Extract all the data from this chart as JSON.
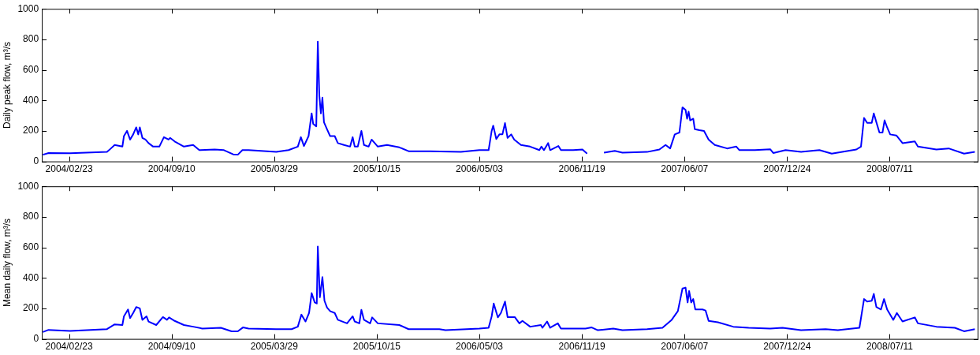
{
  "chart_data": [
    {
      "type": "line",
      "ylabel": "Daily peak flow, m³/s",
      "xlim": [
        "2004-01-01",
        "2008-12-31"
      ],
      "ylim": [
        0,
        1000
      ],
      "yticks": [
        0,
        200,
        400,
        600,
        800,
        1000
      ],
      "xticks": [
        {
          "value": "2004-02-23",
          "label": "2004/02/23"
        },
        {
          "value": "2004-09-10",
          "label": "2004/09/10"
        },
        {
          "value": "2005-03-29",
          "label": "2005/03/29"
        },
        {
          "value": "2005-10-15",
          "label": "2005/10/15"
        },
        {
          "value": "2006-05-03",
          "label": "2006/05/03"
        },
        {
          "value": "2006-11-19",
          "label": "2006/11/19"
        },
        {
          "value": "2007-06-07",
          "label": "2007/06/07"
        },
        {
          "value": "2007-12-24",
          "label": "2007/12/24"
        },
        {
          "value": "2008-07-11",
          "label": "2008/07/11"
        }
      ],
      "grid": false,
      "legend": false,
      "marker": "none",
      "line_style": "solid",
      "x": [
        "2004-01-03",
        "2004-01-14",
        "2004-02-25",
        "2004-05-07",
        "2004-05-13",
        "2004-05-22",
        "2004-06-06",
        "2004-06-09",
        "2004-06-15",
        "2004-06-21",
        "2004-06-27",
        "2004-07-03",
        "2004-07-07",
        "2004-07-10",
        "2004-07-15",
        "2004-07-21",
        "2004-07-27",
        "2004-08-05",
        "2004-08-17",
        "2004-08-26",
        "2004-09-04",
        "2004-09-07",
        "2004-09-16",
        "2004-10-04",
        "2004-10-22",
        "2004-11-03",
        "2004-12-03",
        "2004-12-21",
        "2005-01-08",
        "2005-01-17",
        "2005-01-26",
        "2005-02-07",
        "2005-04-02",
        "2005-04-26",
        "2005-05-14",
        "2005-05-20",
        "2005-05-26",
        "2005-06-04",
        "2005-06-10",
        "2005-06-13",
        "2005-06-19",
        "2005-06-22",
        "2005-06-25",
        "2005-06-28",
        "2005-07-01",
        "2005-07-04",
        "2005-07-10",
        "2005-07-16",
        "2005-07-25",
        "2005-07-31",
        "2005-08-12",
        "2005-08-24",
        "2005-08-29",
        "2005-09-02",
        "2005-09-08",
        "2005-09-15",
        "2005-09-20",
        "2005-09-29",
        "2005-10-05",
        "2005-10-17",
        "2005-11-04",
        "2005-11-28",
        "2005-12-16",
        "2006-01-27",
        "2006-03-28",
        "2006-05-03",
        "2006-05-21",
        "2006-05-27",
        "2006-05-30",
        "2006-06-05",
        "2006-06-11",
        "2006-06-17",
        "2006-06-22",
        "2006-06-27",
        "2006-07-04",
        "2006-07-10",
        "2006-07-23",
        "2006-08-10",
        "2006-08-28",
        "2006-09-01",
        "2006-09-06",
        "2006-09-14",
        "2006-09-18",
        "2006-10-04",
        "2006-10-09",
        "2006-11-02",
        "2006-11-20",
        "2006-11-29",
        "2006-12-14",
        "2007-01-01",
        "2007-01-22",
        "2007-02-06",
        "2007-03-26",
        "2007-04-19",
        "2007-05-01",
        "2007-05-10",
        "2007-05-19",
        "2007-05-28",
        "2007-06-03",
        "2007-06-09",
        "2007-06-12",
        "2007-06-15",
        "2007-06-18",
        "2007-06-24",
        "2007-06-27",
        "2007-07-06",
        "2007-07-15",
        "2007-07-24",
        "2007-08-05",
        "2007-08-29",
        "2007-09-16",
        "2007-09-22",
        "2007-10-22",
        "2007-11-21",
        "2007-11-27",
        "2007-12-21",
        "2008-01-20",
        "2008-02-25",
        "2008-03-20",
        "2008-05-07",
        "2008-05-16",
        "2008-05-22",
        "2008-05-28",
        "2008-06-06",
        "2008-06-10",
        "2008-06-15",
        "2008-06-21",
        "2008-06-27",
        "2008-07-01",
        "2008-07-06",
        "2008-07-12",
        "2008-07-24",
        "2008-08-05",
        "2008-08-29",
        "2008-09-04",
        "2008-10-10",
        "2008-11-03",
        "2008-12-03",
        "2008-12-24"
      ],
      "series": [
        {
          "color": "#0000ff",
          "values": [
            44,
            55,
            53,
            62,
            80,
            108,
            97,
            166,
            200,
            143,
            177,
            223,
            177,
            223,
            154,
            143,
            120,
            97,
            97,
            159,
            143,
            154,
            131,
            97,
            108,
            74,
            78,
            74,
            46,
            44,
            74,
            74,
            62,
            74,
            97,
            159,
            101,
            166,
            315,
            246,
            230,
            785,
            430,
            315,
            418,
            257,
            211,
            166,
            166,
            120,
            108,
            97,
            159,
            97,
            97,
            200,
            108,
            97,
            143,
            97,
            108,
            92,
            67,
            67,
            62,
            74,
            74,
            200,
            234,
            147,
            177,
            177,
            251,
            154,
            177,
            143,
            108,
            97,
            74,
            97,
            74,
            120,
            74,
            101,
            74,
            74,
            78,
            51,
            null,
            57,
            69,
            57,
            62,
            78,
            108,
            85,
            177,
            189,
            354,
            338,
            280,
            326,
            269,
            280,
            211,
            205,
            200,
            143,
            108,
            85,
            97,
            74,
            74,
            80,
            55,
            74,
            62,
            74,
            51,
            78,
            97,
            285,
            253,
            253,
            315,
            257,
            189,
            189,
            269,
            223,
            177,
            170,
            120,
            131,
            97,
            78,
            85,
            51,
            62
          ]
        }
      ]
    },
    {
      "type": "line",
      "ylabel": "Mean daily flow, m³/s",
      "xlim": [
        "2004-01-01",
        "2008-12-31"
      ],
      "ylim": [
        0,
        1000
      ],
      "yticks": [
        0,
        200,
        400,
        600,
        800,
        1000
      ],
      "xticks": [
        {
          "value": "2004-02-23",
          "label": "2004/02/23"
        },
        {
          "value": "2004-09-10",
          "label": "2004/09/10"
        },
        {
          "value": "2005-03-29",
          "label": "2005/03/29"
        },
        {
          "value": "2005-10-15",
          "label": "2005/10/15"
        },
        {
          "value": "2006-05-03",
          "label": "2006/05/03"
        },
        {
          "value": "2006-11-19",
          "label": "2006/11/19"
        },
        {
          "value": "2007-06-07",
          "label": "2007/06/07"
        },
        {
          "value": "2007-12-24",
          "label": "2007/12/24"
        },
        {
          "value": "2008-07-11",
          "label": "2008/07/11"
        }
      ],
      "grid": false,
      "legend": false,
      "marker": "none",
      "line_style": "solid",
      "x": [
        "2004-01-03",
        "2004-01-14",
        "2004-02-25",
        "2004-05-07",
        "2004-05-22",
        "2004-06-06",
        "2004-06-09",
        "2004-06-17",
        "2004-06-21",
        "2004-06-27",
        "2004-07-03",
        "2004-07-10",
        "2004-07-15",
        "2004-07-23",
        "2004-07-27",
        "2004-08-11",
        "2004-08-24",
        "2004-09-01",
        "2004-09-05",
        "2004-09-16",
        "2004-10-04",
        "2004-10-22",
        "2004-11-09",
        "2004-12-15",
        "2005-01-05",
        "2005-01-17",
        "2005-01-27",
        "2005-02-07",
        "2005-04-02",
        "2005-05-02",
        "2005-05-14",
        "2005-05-21",
        "2005-05-29",
        "2005-06-05",
        "2005-06-10",
        "2005-06-16",
        "2005-06-20",
        "2005-06-22",
        "2005-06-26",
        "2005-07-01",
        "2005-07-05",
        "2005-07-10",
        "2005-07-16",
        "2005-07-25",
        "2005-07-31",
        "2005-08-18",
        "2005-08-29",
        "2005-09-02",
        "2005-09-11",
        "2005-09-15",
        "2005-09-20",
        "2005-10-02",
        "2005-10-06",
        "2005-10-17",
        "2005-11-28",
        "2005-12-16",
        "2006-02-14",
        "2006-02-26",
        "2006-05-03",
        "2006-05-21",
        "2006-05-27",
        "2006-05-31",
        "2006-06-08",
        "2006-06-14",
        "2006-06-22",
        "2006-06-27",
        "2006-07-11",
        "2006-07-20",
        "2006-07-26",
        "2006-08-10",
        "2006-08-31",
        "2006-09-03",
        "2006-09-12",
        "2006-09-18",
        "2006-10-03",
        "2006-10-09",
        "2006-11-26",
        "2006-12-08",
        "2006-12-20",
        "2007-01-19",
        "2007-02-06",
        "2007-03-26",
        "2007-04-25",
        "2007-05-13",
        "2007-05-25",
        "2007-06-03",
        "2007-06-09",
        "2007-06-13",
        "2007-06-16",
        "2007-06-20",
        "2007-06-24",
        "2007-06-28",
        "2007-07-12",
        "2007-07-18",
        "2007-07-24",
        "2007-08-11",
        "2007-09-10",
        "2007-10-10",
        "2007-11-21",
        "2007-12-15",
        "2008-01-20",
        "2008-03-08",
        "2008-04-01",
        "2008-05-13",
        "2008-05-22",
        "2008-05-28",
        "2008-06-06",
        "2008-06-10",
        "2008-06-15",
        "2008-06-24",
        "2008-06-30",
        "2008-07-06",
        "2008-07-18",
        "2008-07-25",
        "2008-08-05",
        "2008-08-29",
        "2008-09-04",
        "2008-10-10",
        "2008-11-15",
        "2008-12-03",
        "2008-12-24"
      ],
      "series": [
        {
          "color": "#0000ff",
          "values": [
            45,
            59,
            52,
            64,
            95,
            91,
            148,
            193,
            136,
            170,
            209,
            200,
            125,
            148,
            114,
            91,
            143,
            125,
            141,
            118,
            91,
            80,
            68,
            73,
            50,
            50,
            75,
            68,
            64,
            64,
            80,
            159,
            114,
            170,
            300,
            239,
            232,
            605,
            273,
            405,
            250,
            205,
            182,
            170,
            125,
            102,
            148,
            114,
            102,
            191,
            125,
            102,
            141,
            102,
            91,
            64,
            64,
            57,
            68,
            73,
            148,
            232,
            141,
            170,
            245,
            143,
            143,
            102,
            118,
            80,
            91,
            73,
            114,
            73,
            102,
            68,
            68,
            75,
            57,
            68,
            57,
            64,
            73,
            125,
            182,
            330,
            336,
            239,
            314,
            239,
            261,
            193,
            193,
            186,
            118,
            109,
            80,
            73,
            68,
            73,
            57,
            64,
            57,
            73,
            261,
            245,
            250,
            295,
            209,
            193,
            261,
            193,
            125,
            170,
            114,
            141,
            102,
            80,
            73,
            50,
            64
          ]
        }
      ]
    }
  ]
}
